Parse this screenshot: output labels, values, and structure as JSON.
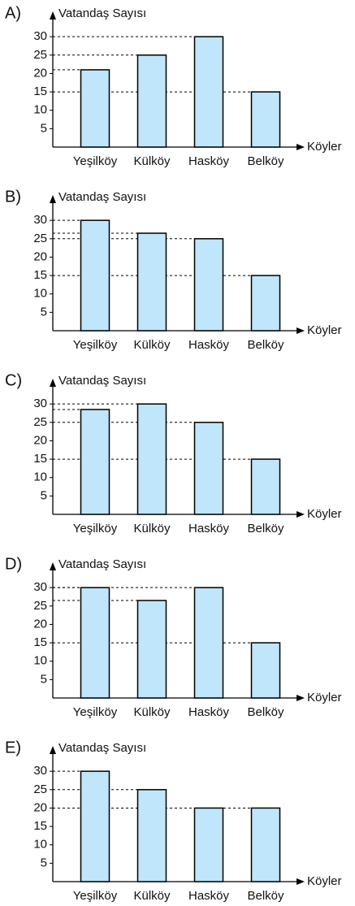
{
  "chart_data": [
    {
      "type": "bar",
      "label": "A)",
      "y_label": "Vatandaş Sayısı",
      "x_label": "Köyler",
      "categories": [
        "Yeşilköy",
        "Külköy",
        "Hasköy",
        "Belköy"
      ],
      "values": [
        21,
        25,
        30,
        15
      ],
      "color": "#bfe6fb",
      "ylim": [
        0,
        36
      ],
      "yticks": [
        5,
        10,
        15,
        20,
        25,
        30
      ]
    },
    {
      "type": "bar",
      "label": "B)",
      "y_label": "Vatandaş Sayısı",
      "x_label": "Köyler",
      "categories": [
        "Yeşilköy",
        "Külköy",
        "Hasköy",
        "Belköy"
      ],
      "values": [
        30,
        26.5,
        25,
        15
      ],
      "color": "#bfe6fb",
      "ylim": [
        0,
        36
      ],
      "yticks": [
        5,
        10,
        15,
        20,
        25,
        30
      ]
    },
    {
      "type": "bar",
      "label": "C)",
      "y_label": "Vatandaş Sayısı",
      "x_label": "Köyler",
      "categories": [
        "Yeşilköy",
        "Külköy",
        "Hasköy",
        "Belköy"
      ],
      "values": [
        28.5,
        30,
        25,
        15
      ],
      "color": "#bfe6fb",
      "ylim": [
        0,
        36
      ],
      "yticks": [
        5,
        10,
        15,
        20,
        25,
        30
      ]
    },
    {
      "type": "bar",
      "label": "D)",
      "y_label": "Vatandaş Sayısı",
      "x_label": "Köyler",
      "categories": [
        "Yeşilköy",
        "Külköy",
        "Hasköy",
        "Belköy"
      ],
      "values": [
        30,
        26.5,
        30,
        15
      ],
      "color": "#bfe6fb",
      "ylim": [
        0,
        36
      ],
      "yticks": [
        5,
        10,
        15,
        20,
        25,
        30
      ]
    },
    {
      "type": "bar",
      "label": "E)",
      "y_label": "Vatandaş Sayısı",
      "x_label": "Köyler",
      "categories": [
        "Yeşilköy",
        "Külköy",
        "Hasköy",
        "Belköy"
      ],
      "values": [
        30,
        25,
        20,
        20
      ],
      "color": "#bfe6fb",
      "ylim": [
        0,
        36
      ],
      "yticks": [
        5,
        10,
        15,
        20,
        25,
        30
      ]
    }
  ]
}
